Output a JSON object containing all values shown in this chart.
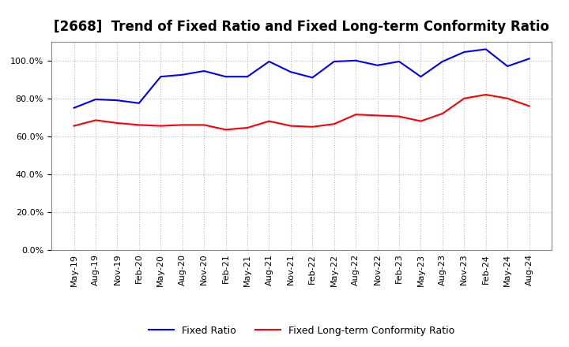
{
  "title": "[2668]  Trend of Fixed Ratio and Fixed Long-term Conformity Ratio",
  "x_labels": [
    "May-19",
    "Aug-19",
    "Nov-19",
    "Feb-20",
    "May-20",
    "Aug-20",
    "Nov-20",
    "Feb-21",
    "May-21",
    "Aug-21",
    "Nov-21",
    "Feb-22",
    "May-22",
    "Aug-22",
    "Nov-22",
    "Feb-23",
    "May-23",
    "Aug-23",
    "Nov-23",
    "Feb-24",
    "May-24",
    "Aug-24"
  ],
  "fixed_ratio": [
    75.0,
    79.5,
    79.0,
    77.5,
    91.5,
    92.5,
    94.5,
    91.5,
    91.5,
    99.5,
    94.0,
    91.0,
    99.5,
    100.0,
    97.5,
    99.5,
    91.5,
    99.5,
    104.5,
    106.0,
    97.0,
    101.0
  ],
  "fixed_lt_ratio": [
    65.5,
    68.5,
    67.0,
    66.0,
    65.5,
    66.0,
    66.0,
    63.5,
    64.5,
    68.0,
    65.5,
    65.0,
    66.5,
    71.5,
    71.0,
    70.5,
    68.0,
    72.0,
    80.0,
    82.0,
    80.0,
    76.0
  ],
  "fixed_ratio_color": "#0000ff",
  "fixed_lt_ratio_color": "#ff0000",
  "ylim": [
    0,
    110
  ],
  "yticks": [
    0,
    20,
    40,
    60,
    80,
    100
  ],
  "grid_color": "#bbbbbb",
  "bg_color": "#ffffff",
  "line_width": 1.5,
  "title_fontsize": 12,
  "tick_fontsize": 8,
  "legend_fontsize": 9
}
